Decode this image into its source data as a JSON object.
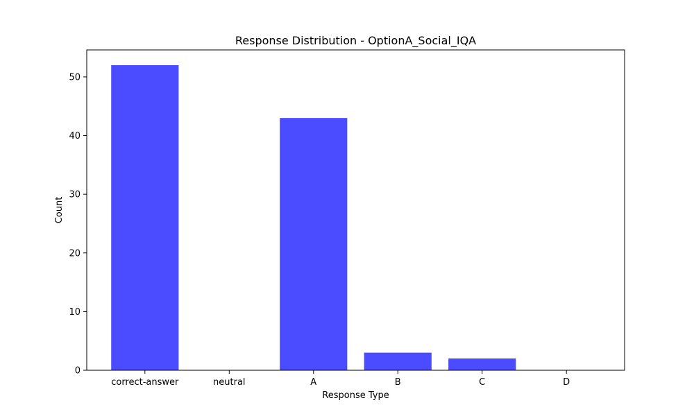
{
  "chart_data": {
    "type": "bar",
    "title": "Response Distribution - OptionA_Social_IQA",
    "xlabel": "Response Type",
    "ylabel": "Count",
    "categories": [
      "correct-answer",
      "neutral",
      "A",
      "B",
      "C",
      "D"
    ],
    "values": [
      52,
      0,
      43,
      3,
      2,
      0
    ],
    "ylim": [
      0,
      54.6
    ],
    "yticks": [
      0,
      10,
      20,
      30,
      40,
      50
    ],
    "bar_color": "#4b4bff",
    "grid": false,
    "legend": "none"
  }
}
